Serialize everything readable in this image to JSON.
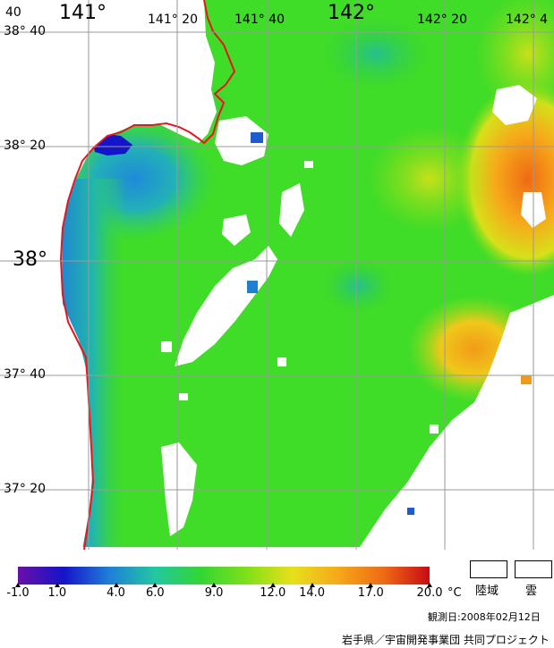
{
  "lon_labels": [
    "141°",
    "141° 20",
    "141° 40",
    "142°",
    "142° 20",
    "142° 4"
  ],
  "lat_labels": [
    "38° 40",
    "38° 20",
    "38°",
    "37° 40",
    "37° 20"
  ],
  "corner_label": "40",
  "colorbar": {
    "ticks": [
      "-1.0",
      "1.0",
      "4.0",
      "6.0",
      "9.0",
      "12.0",
      "14.0",
      "17.0",
      "20.0"
    ],
    "unit": "°C",
    "stops": [
      "#6a0fa8",
      "#1414c8",
      "#1f7fd8",
      "#22c8a0",
      "#33d633",
      "#7fe018",
      "#e8e01a",
      "#f6a81a",
      "#ef6a14",
      "#c80a14"
    ]
  },
  "legend": {
    "land": "陸域",
    "cloud": "雲"
  },
  "observation_date": "観測日:2008年02月12日",
  "credit": "岩手県／宇宙開発事業団 共同プロジェクト",
  "colors": {
    "sea_green": "#3fdc28",
    "coast_blue": "#1f9ad0",
    "warm_orange": "#f2a21a",
    "coastline": "#e8141e",
    "grid": "#9a9a9a"
  }
}
